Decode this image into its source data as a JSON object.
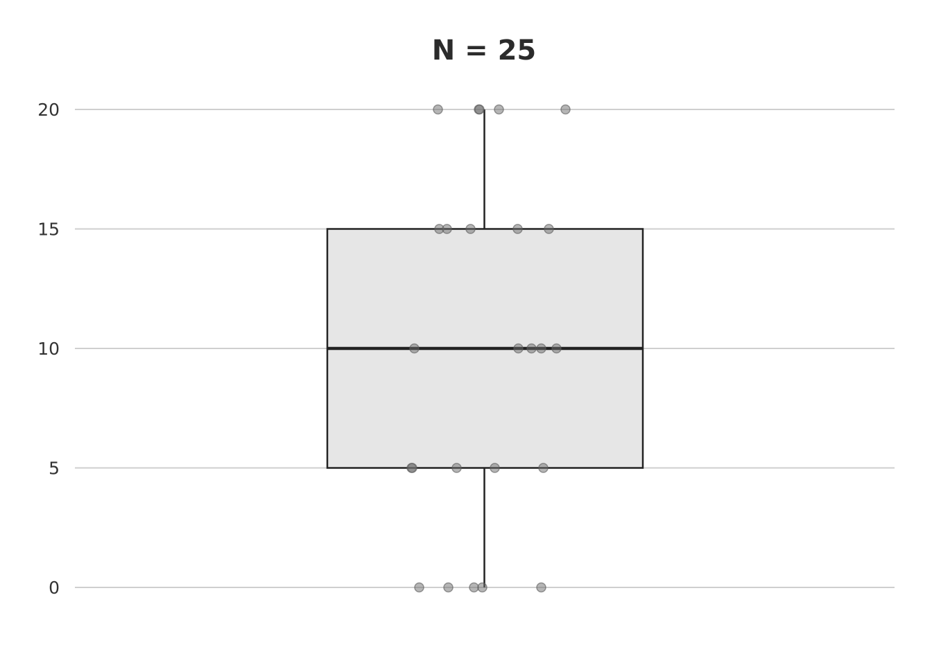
{
  "chart_data": {
    "type": "box",
    "title": "N = 25",
    "xlabel": "",
    "ylabel": "",
    "ylim": [
      -1.7,
      20.7
    ],
    "yticks": [
      0,
      5,
      10,
      15,
      20
    ],
    "grid": true,
    "box": {
      "min": 0,
      "q1": 5,
      "median": 10,
      "q3": 15,
      "max": 20
    },
    "points": [
      20,
      20,
      20,
      20,
      20,
      15,
      15,
      15,
      15,
      15,
      10,
      10,
      10,
      10,
      10,
      5,
      5,
      5,
      5,
      5,
      0,
      0,
      0,
      0,
      0
    ],
    "colors": {
      "box_fill": "#e6e6e6",
      "box_stroke": "#222222",
      "point": "#6e6e6e",
      "grid": "#cfcfcf"
    }
  }
}
